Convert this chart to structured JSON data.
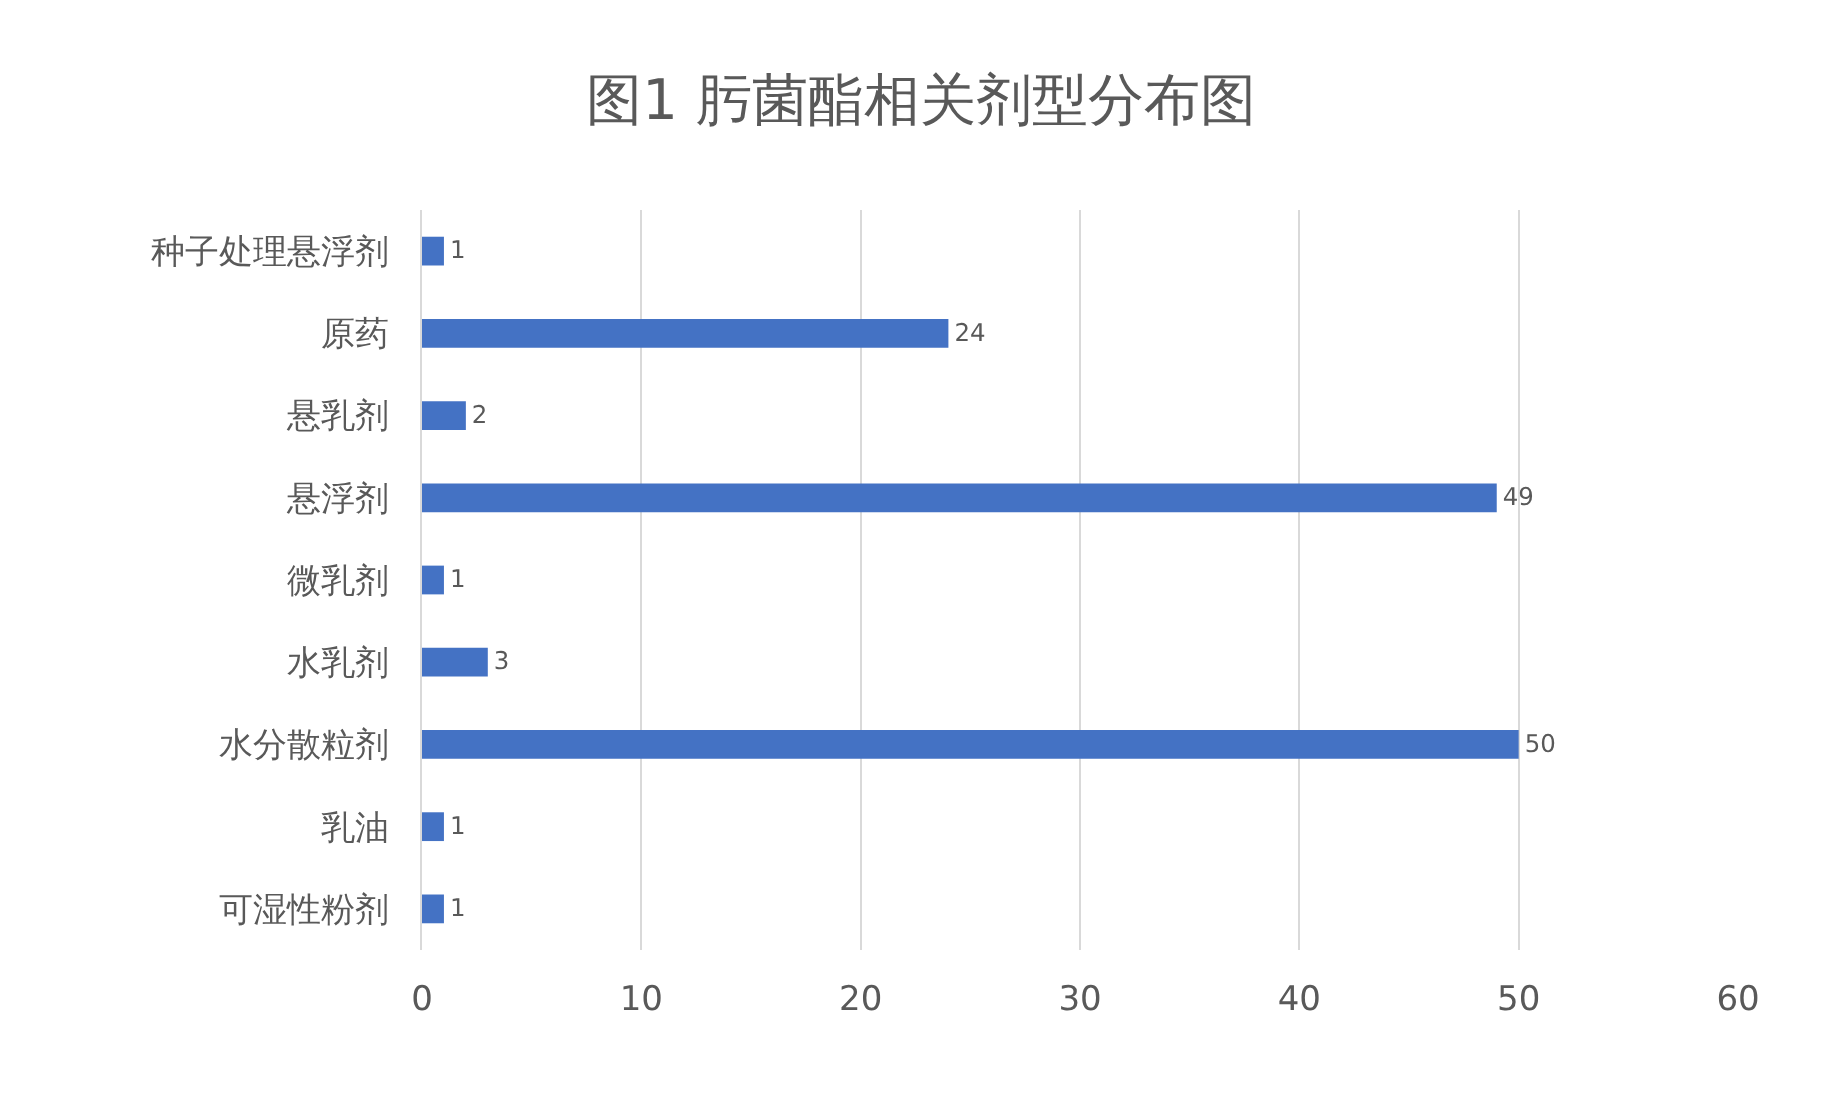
{
  "chart_data": {
    "type": "bar",
    "orientation": "horizontal",
    "title": "图1 肟菌酯相关剂型分布图",
    "categories": [
      "种子处理悬浮剂",
      "原药",
      "悬乳剂",
      "悬浮剂",
      "微乳剂",
      "水乳剂",
      "水分散粒剂",
      "乳油",
      "可湿性粉剂"
    ],
    "values": [
      1,
      24,
      2,
      49,
      1,
      3,
      50,
      1,
      1
    ],
    "color": "#4472c4",
    "xlim": [
      0,
      60
    ],
    "xticks": [
      0,
      10,
      20,
      30,
      40,
      50,
      60
    ],
    "grid": "x",
    "data_labels": true
  }
}
